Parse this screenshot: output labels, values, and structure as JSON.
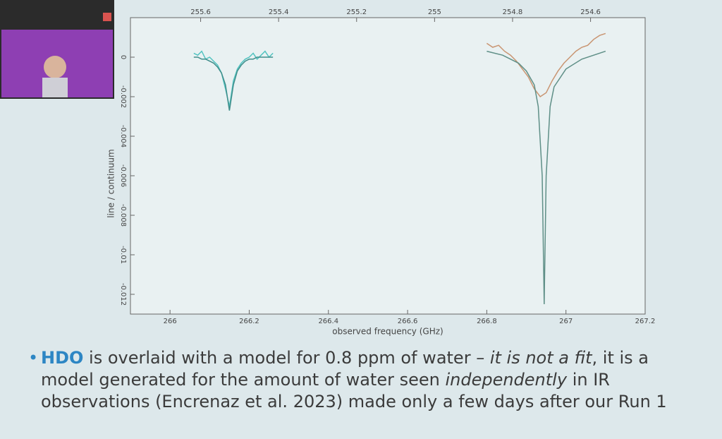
{
  "chart_data": {
    "type": "line",
    "xlabel": "observed frequency (GHz)",
    "ylabel": "line / continuum",
    "xlim": [
      265.9,
      267.2
    ],
    "xticks": [
      266,
      266.2,
      266.4,
      266.6,
      266.8,
      267,
      267.2
    ],
    "x2lim": [
      255.78,
      254.46
    ],
    "x2ticks": [
      255.6,
      255.4,
      255.2,
      255,
      254.8,
      254.6
    ],
    "ylim": [
      -0.013,
      0.002
    ],
    "yticks": [
      0,
      -0.002,
      -0.004,
      -0.006,
      -0.008,
      -0.01,
      -0.012
    ],
    "series": [
      {
        "color": "#52c3c0",
        "x": [
          266.06,
          266.07,
          266.08,
          266.09,
          266.1,
          266.11,
          266.12,
          266.13,
          266.14,
          266.15,
          266.16,
          266.17,
          266.18,
          266.19,
          266.2,
          266.21,
          266.22,
          266.23,
          266.24,
          266.25,
          266.26
        ],
        "values": [
          0.0002,
          0.0001,
          0.0003,
          -0.0001,
          0.0,
          -0.0002,
          -0.0004,
          -0.0008,
          -0.0016,
          -0.0025,
          -0.0012,
          -0.0006,
          -0.0003,
          -0.0001,
          0.0,
          0.0002,
          -0.0001,
          0.0001,
          0.0003,
          0.0,
          0.0002
        ]
      },
      {
        "color": "#3f8d8a",
        "x": [
          266.06,
          266.07,
          266.08,
          266.09,
          266.1,
          266.11,
          266.12,
          266.13,
          266.14,
          266.15,
          266.16,
          266.17,
          266.18,
          266.19,
          266.2,
          266.21,
          266.22,
          266.23,
          266.24,
          266.25,
          266.26
        ],
        "values": [
          0.0,
          0.0,
          -0.0001,
          -0.0001,
          -0.0002,
          -0.0003,
          -0.0005,
          -0.0008,
          -0.0014,
          -0.0027,
          -0.0014,
          -0.0007,
          -0.0004,
          -0.0002,
          -0.0001,
          -0.0001,
          0.0,
          0.0,
          0.0,
          0.0,
          0.0
        ]
      },
      {
        "color": "#c99572",
        "x": [
          266.8,
          266.815,
          266.83,
          266.845,
          266.86,
          266.875,
          266.89,
          266.905,
          266.92,
          266.935,
          266.95,
          266.965,
          266.98,
          266.995,
          267.01,
          267.025,
          267.04,
          267.055,
          267.07,
          267.085,
          267.1
        ],
        "values": [
          0.0007,
          0.0005,
          0.0006,
          0.0003,
          0.0001,
          -0.0002,
          -0.0006,
          -0.001,
          -0.0016,
          -0.002,
          -0.0018,
          -0.0012,
          -0.0007,
          -0.0003,
          0.0,
          0.0003,
          0.0005,
          0.0006,
          0.0009,
          0.0011,
          0.0012
        ]
      },
      {
        "color": "#5f8f87",
        "x": [
          266.8,
          266.84,
          266.88,
          266.9,
          266.92,
          266.93,
          266.94,
          266.945,
          266.95,
          266.96,
          266.97,
          267.0,
          267.04,
          267.1
        ],
        "values": [
          0.0003,
          0.0001,
          -0.0003,
          -0.0007,
          -0.0014,
          -0.0025,
          -0.006,
          -0.0125,
          -0.006,
          -0.0025,
          -0.0015,
          -0.0006,
          -0.0001,
          0.0003
        ]
      }
    ]
  },
  "bullet": {
    "segments": [
      "HDO",
      " is overlaid with a model for 0.8 ppm of water – ",
      "it is not a fit",
      ", it is a model generated for the amount of water seen ",
      "independently",
      " in IR observations (Encrenaz et al. 2023) made only a few days after our Run 1"
    ]
  }
}
